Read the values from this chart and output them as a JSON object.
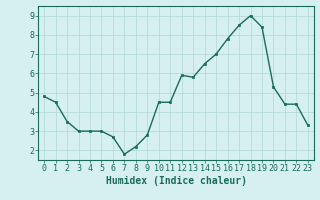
{
  "x": [
    0,
    1,
    2,
    3,
    4,
    5,
    6,
    7,
    8,
    9,
    10,
    11,
    12,
    13,
    14,
    15,
    16,
    17,
    18,
    19,
    20,
    21,
    22,
    23
  ],
  "y": [
    4.8,
    4.5,
    3.5,
    3.0,
    3.0,
    3.0,
    2.7,
    1.8,
    2.2,
    2.8,
    4.5,
    4.5,
    5.9,
    5.8,
    6.5,
    7.0,
    7.8,
    8.5,
    9.0,
    8.4,
    5.3,
    4.4,
    4.4,
    3.3
  ],
  "xlabel": "Humidex (Indice chaleur)",
  "ylabel": "",
  "ylim": [
    1.5,
    9.5
  ],
  "xlim": [
    -0.5,
    23.5
  ],
  "xticks": [
    0,
    1,
    2,
    3,
    4,
    5,
    6,
    7,
    8,
    9,
    10,
    11,
    12,
    13,
    14,
    15,
    16,
    17,
    18,
    19,
    20,
    21,
    22,
    23
  ],
  "yticks": [
    2,
    3,
    4,
    5,
    6,
    7,
    8,
    9
  ],
  "line_color": "#1a6b5a",
  "marker_color": "#1a6b5a",
  "bg_color": "#d6f0f0",
  "grid_color": "#b0d8d8",
  "axis_color": "#1a6b5a",
  "tick_color": "#1a6b5a",
  "label_color": "#1a6b5a",
  "xlabel_fontsize": 7,
  "tick_fontsize": 6,
  "marker_size": 2,
  "line_width": 1.0
}
